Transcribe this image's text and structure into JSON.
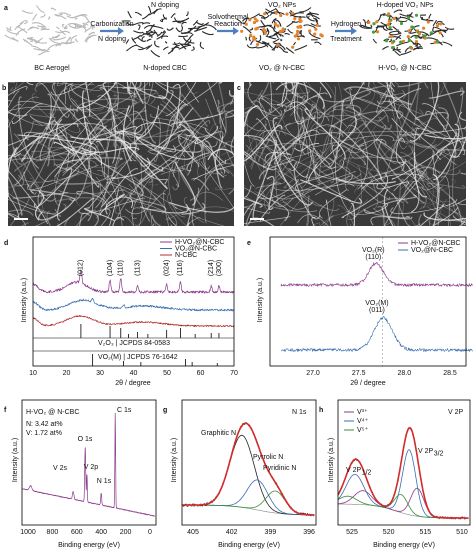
{
  "panel_a": {
    "label": "a",
    "stages": [
      "BC Aerogel",
      "N-doped CBC",
      "VO₂ @ N-CBC",
      "H-VO₂ @ N-CBC"
    ],
    "steps": [
      {
        "above": [
          "Carbonization"
        ],
        "below": [
          "N doping"
        ]
      },
      {
        "above": [
          "Solvothermal",
          "Reaction"
        ],
        "below": []
      },
      {
        "above": [
          "Hydrogen"
        ],
        "below": [
          "Treatment"
        ]
      }
    ],
    "notes": [
      {
        "text": "N doping",
        "color": "#3a6fb0"
      },
      {
        "text": "VO₂ NPs",
        "color": "#e07b24"
      },
      {
        "text": "H-doped VO₂ NPs",
        "color": "#3c8c3c"
      }
    ]
  },
  "panel_b": {
    "label": "b"
  },
  "panel_c": {
    "label": "c"
  },
  "panel_d": {
    "label": "d",
    "xlabel": "2θ / degree",
    "ylabel": "Intensity (a.u.)",
    "xticks": [
      10,
      20,
      30,
      40,
      50,
      60,
      70
    ],
    "legend": [
      {
        "name": "H-VO₂@N-CBC",
        "color": "#8b3a8b"
      },
      {
        "name": "VO₂@N-CBC",
        "color": "#3a6fb0"
      },
      {
        "name": "N-CBC",
        "color": "#b03030"
      }
    ],
    "peaks": [
      "(012)",
      "(104)",
      "(110)",
      "(113)",
      "(024)",
      "(116)",
      "(214)",
      "(300)"
    ],
    "references": [
      "V₂O₃ | JCPDS 84-0583",
      "VO₂(M) | JCPDS 76-1642"
    ]
  },
  "panel_e": {
    "label": "e",
    "xlabel": "2θ / degree",
    "ylabel": "Intensity (a.u.)",
    "xticks": [
      "27.0",
      "27.5",
      "28.0",
      "28.5"
    ],
    "legend": [
      {
        "name": "H-VO₂@N-CBC",
        "color": "#8b3a8b"
      },
      {
        "name": "VO₂@N-CBC",
        "color": "#3a6fb0"
      }
    ],
    "annotations": [
      [
        "VO₂(R)",
        "(110)"
      ],
      [
        "VO₂(M)",
        "(011)"
      ]
    ]
  },
  "panel_f": {
    "label": "f",
    "xlabel": "Binding energy (eV)",
    "ylabel": "Intensity (a.u.)",
    "xticks": [
      1000,
      800,
      600,
      400,
      200,
      0
    ],
    "sample": "H-VO₂ @ N-CBC",
    "composition": [
      "N:  3.42  at%",
      "V:  1.72  at%"
    ],
    "peaks": [
      "C 1s",
      "O 1s",
      "V 2s",
      "V 2p",
      "N 1s"
    ]
  },
  "panel_g": {
    "label": "g",
    "title": "N 1s",
    "xlabel": "Binding energy (eV)",
    "ylabel": "Intensity (a.u.)",
    "xticks": [
      405,
      402,
      399,
      396
    ],
    "components": [
      {
        "name": "Graphitic N",
        "color": "#222222"
      },
      {
        "name": "Pyrrolic N",
        "color": "#3a6fb0"
      },
      {
        "name": "Pyridinic N",
        "color": "#3c8c3c"
      }
    ]
  },
  "panel_h": {
    "label": "h",
    "title": "V 2P",
    "xlabel": "Binding energy (eV)",
    "ylabel": "Intensity (a.u.)",
    "xticks": [
      525,
      520,
      515,
      510
    ],
    "legend": [
      {
        "name": "V³⁺",
        "color": "#8b3a8b"
      },
      {
        "name": "V⁴⁺",
        "color": "#3a6fb0"
      },
      {
        "name": "V⁵⁺",
        "color": "#3c8c3c"
      }
    ],
    "peaks": [
      {
        "text": "V 2P",
        "sub": "1/2"
      },
      {
        "text": "V 2P",
        "sub": "3/2"
      }
    ]
  }
}
